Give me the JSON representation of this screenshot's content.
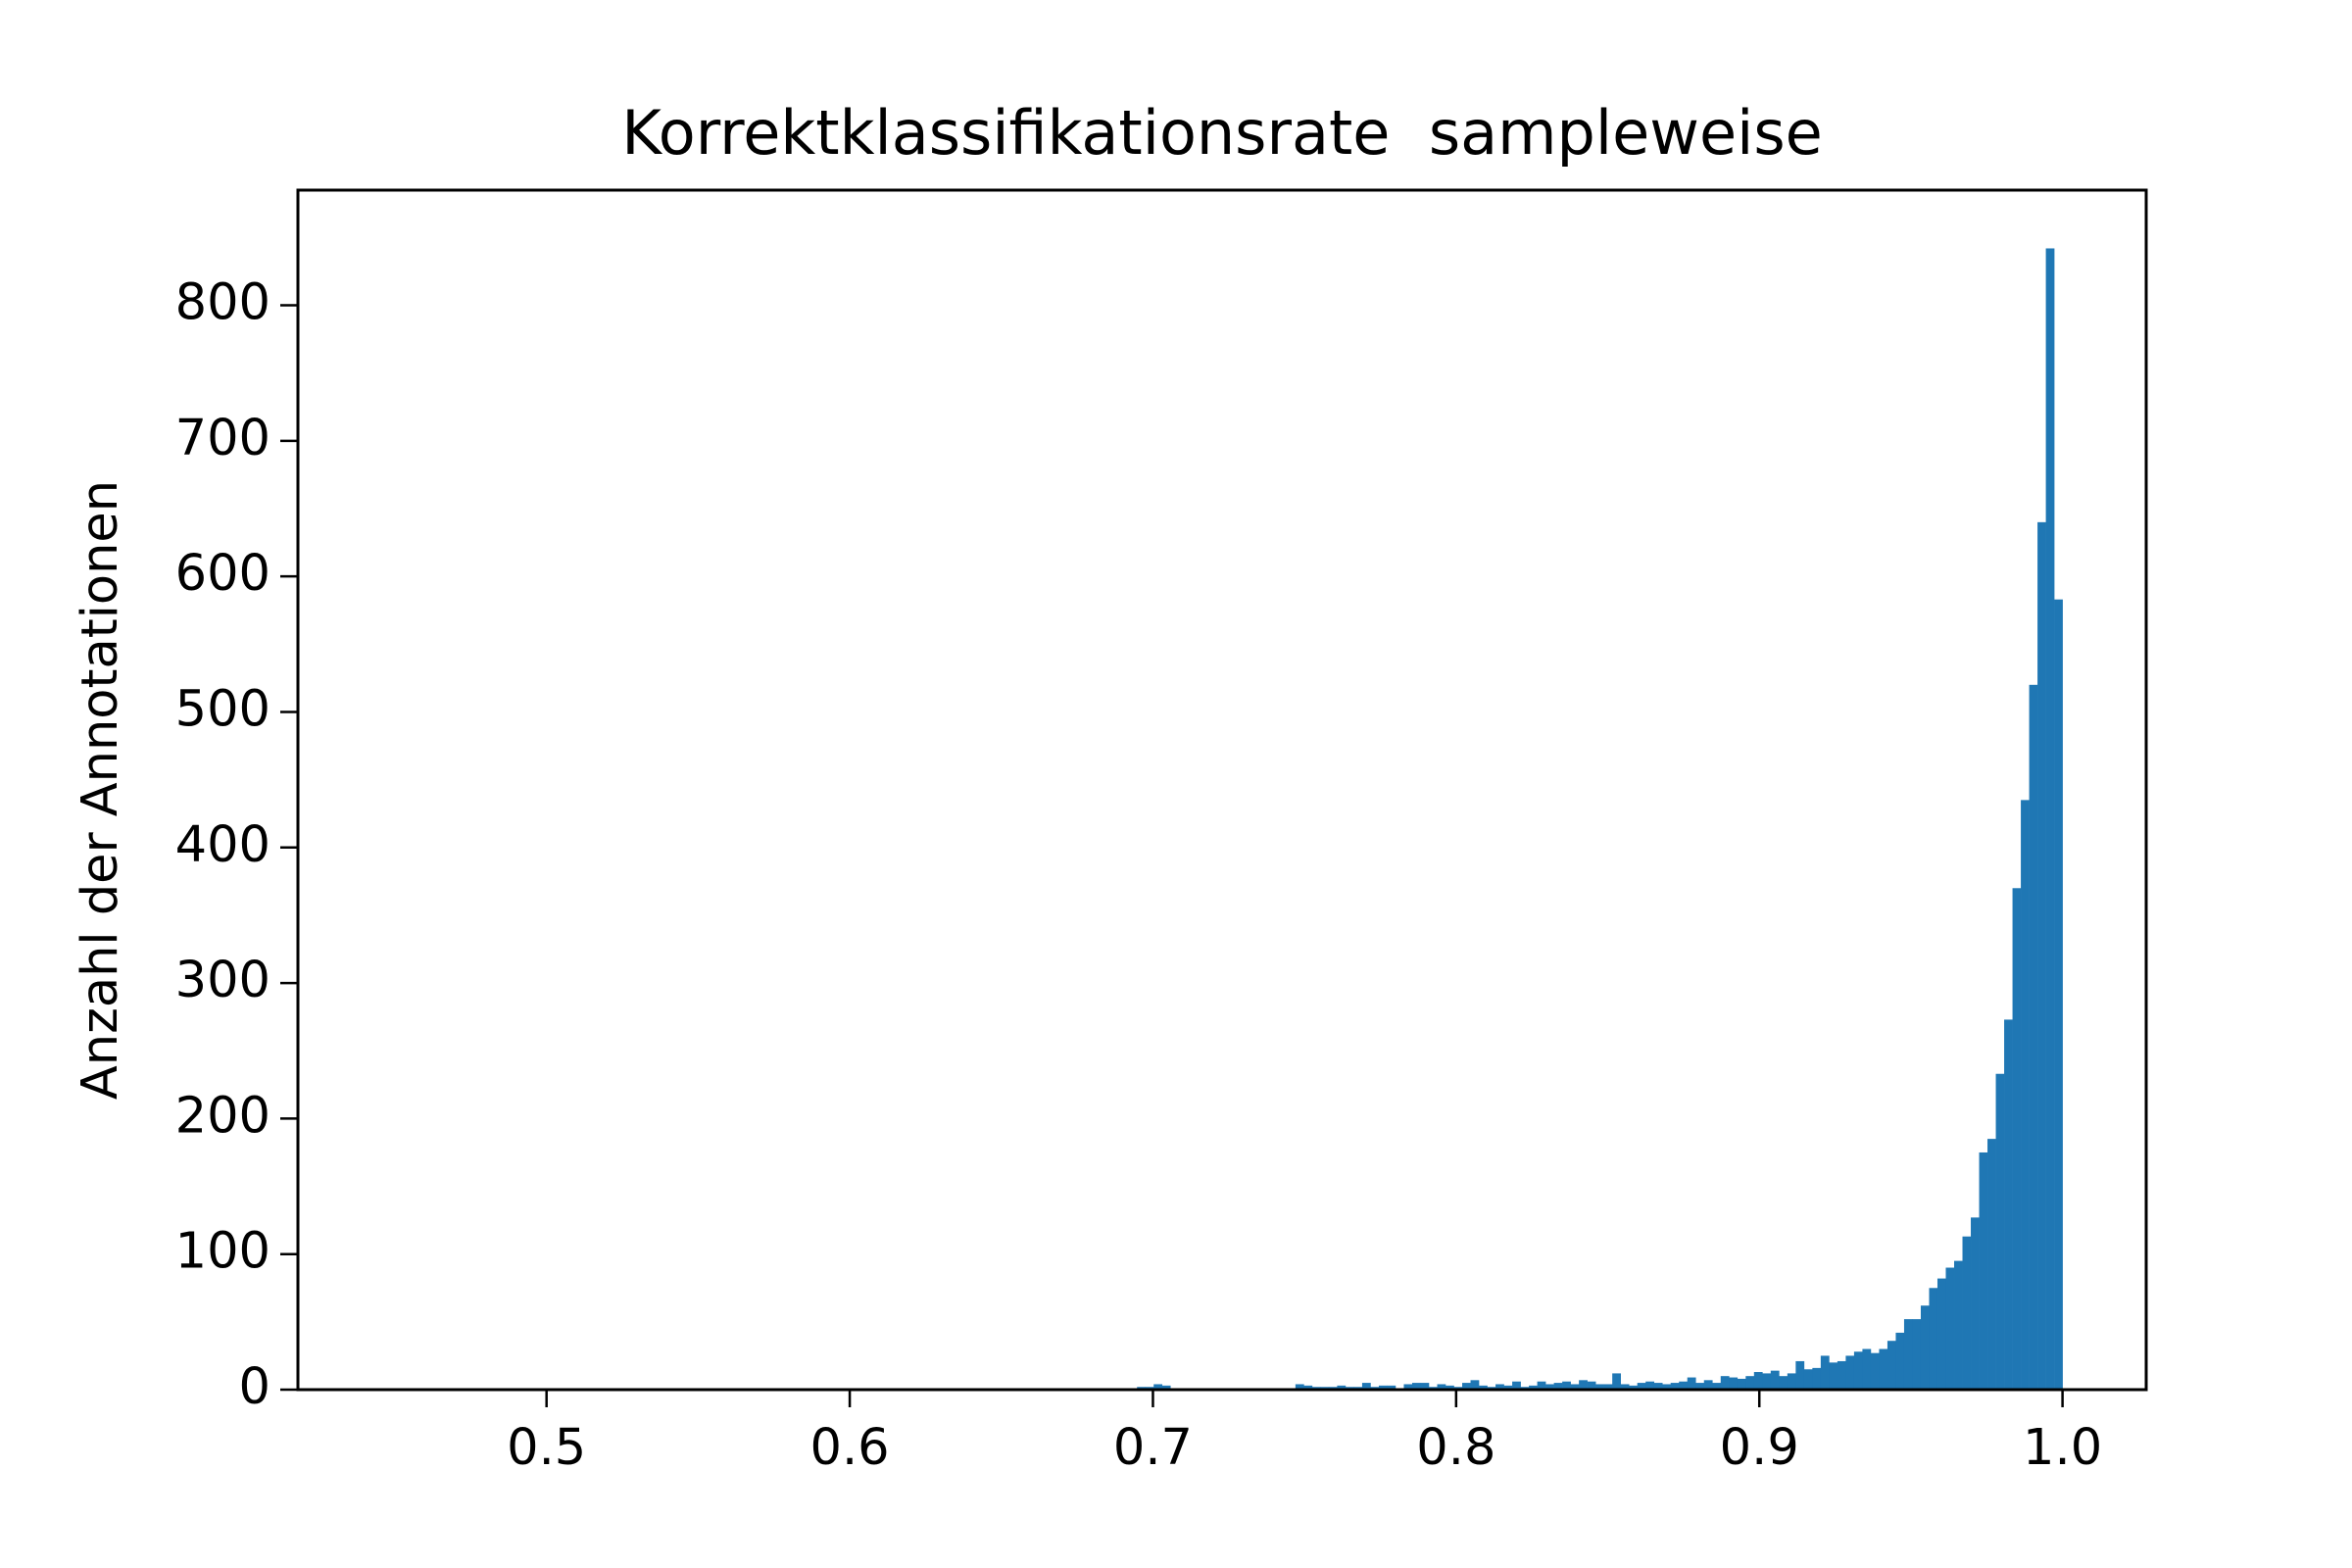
{
  "chart_data": {
    "type": "histogram",
    "title": "Korrektklassifikationsrate  sampleweise",
    "ylabel": "Anzahl der Annotationen",
    "color": "#1f77b4",
    "bins": [
      0.45,
      0.45275,
      0.4555,
      0.45825,
      0.461,
      0.46375,
      0.4665,
      0.46925,
      0.472,
      0.47475,
      0.4775,
      0.48025,
      0.483,
      0.48575,
      0.4885,
      0.49125,
      0.494,
      0.49675,
      0.4995,
      0.50225,
      0.505,
      0.50775,
      0.5105,
      0.51325,
      0.516,
      0.51875,
      0.5215,
      0.52425,
      0.527,
      0.52975,
      0.5325,
      0.53525,
      0.538,
      0.54075,
      0.5435,
      0.54625,
      0.549,
      0.55175,
      0.5545,
      0.55725,
      0.56,
      0.56275,
      0.5655,
      0.56825,
      0.571,
      0.57375,
      0.5765,
      0.57925,
      0.582,
      0.58475,
      0.5875,
      0.59025,
      0.593,
      0.59575,
      0.5985,
      0.60125,
      0.604,
      0.60675,
      0.6095,
      0.61225,
      0.615,
      0.61775,
      0.6205,
      0.62325,
      0.626,
      0.62875,
      0.6315,
      0.63425,
      0.637,
      0.63975,
      0.6425,
      0.64525,
      0.648,
      0.65075,
      0.6535,
      0.65625,
      0.659,
      0.66175,
      0.6645,
      0.66725,
      0.67,
      0.67275,
      0.6755,
      0.67825,
      0.681,
      0.68375,
      0.6865,
      0.68925,
      0.692,
      0.69475,
      0.6975,
      0.70025,
      0.703,
      0.70575,
      0.7085,
      0.71125,
      0.714,
      0.71675,
      0.7195,
      0.72225,
      0.725,
      0.72775,
      0.7305,
      0.73325,
      0.736,
      0.73875,
      0.7415,
      0.74425,
      0.747,
      0.74975,
      0.7525,
      0.75525,
      0.758,
      0.76075,
      0.7635,
      0.76625,
      0.769,
      0.77175,
      0.7745,
      0.77725,
      0.78,
      0.78275,
      0.7855,
      0.78825,
      0.791,
      0.79375,
      0.7965,
      0.79925,
      0.802,
      0.80475,
      0.8075,
      0.81025,
      0.813,
      0.81575,
      0.8185,
      0.82125,
      0.824,
      0.82675,
      0.8295,
      0.83225,
      0.835,
      0.83775,
      0.8405,
      0.84325,
      0.846,
      0.84875,
      0.8515,
      0.85425,
      0.857,
      0.85975,
      0.8625,
      0.86525,
      0.868,
      0.87075,
      0.8735,
      0.87625,
      0.879,
      0.88175,
      0.8845,
      0.88725,
      0.89,
      0.89275,
      0.8955,
      0.89825,
      0.901,
      0.90375,
      0.9065,
      0.90925,
      0.912,
      0.91475,
      0.9175,
      0.92025,
      0.923,
      0.92575,
      0.9285,
      0.93125,
      0.934,
      0.93675,
      0.9395,
      0.94225,
      0.945,
      0.94775,
      0.9505,
      0.95325,
      0.956,
      0.95875,
      0.9615,
      0.96425,
      0.967,
      0.96975,
      0.9725,
      0.97525,
      0.978,
      0.98075,
      0.9835,
      0.98625,
      0.989,
      0.99175,
      0.9945,
      0.99725,
      1.0
    ],
    "values": [
      0,
      0,
      0,
      0,
      0,
      0,
      0,
      0,
      0,
      0,
      0,
      0,
      0,
      0,
      0,
      0,
      0,
      0,
      0,
      0,
      0,
      0,
      0,
      0,
      0,
      0,
      0,
      0,
      0,
      0,
      0,
      0,
      0,
      0,
      0,
      0,
      0,
      0,
      0,
      0,
      0,
      0,
      0,
      0,
      0,
      0,
      0,
      0,
      0,
      0,
      0,
      0,
      0,
      0,
      0,
      0,
      0,
      0,
      0,
      0,
      1,
      0,
      0,
      0,
      0,
      0,
      0,
      0,
      0,
      0,
      0,
      0,
      0,
      1,
      0,
      0,
      0,
      0,
      1,
      0,
      0,
      1,
      0,
      0,
      1,
      0,
      1,
      0,
      1,
      2,
      2,
      4,
      3,
      0,
      0,
      0,
      0,
      0,
      0,
      0,
      0,
      0,
      0,
      0,
      0,
      0,
      0,
      0,
      4,
      3,
      2,
      2,
      2,
      3,
      2,
      2,
      5,
      2,
      3,
      3,
      1,
      4,
      5,
      5,
      2,
      4,
      3,
      2,
      5,
      7,
      3,
      2,
      4,
      3,
      6,
      2,
      3,
      6,
      4,
      5,
      6,
      4,
      7,
      6,
      4,
      4,
      12,
      4,
      3,
      5,
      6,
      5,
      4,
      5,
      6,
      9,
      5,
      7,
      5,
      10,
      9,
      8,
      10,
      13,
      12,
      14,
      10,
      12,
      21,
      15,
      16,
      25,
      20,
      21,
      25,
      28,
      30,
      27,
      30,
      36,
      42,
      52,
      52,
      62,
      75,
      82,
      90,
      95,
      113,
      127,
      175,
      185,
      233,
      273,
      370,
      435,
      520,
      640,
      842,
      583
    ],
    "xlim": [
      0.418,
      1.0276
    ],
    "ylim": [
      0,
      885
    ],
    "xticks": [
      {
        "value": 0.5,
        "label": "0.5"
      },
      {
        "value": 0.6,
        "label": "0.6"
      },
      {
        "value": 0.7,
        "label": "0.7"
      },
      {
        "value": 0.8,
        "label": "0.8"
      },
      {
        "value": 0.9,
        "label": "0.9"
      },
      {
        "value": 1.0,
        "label": "1.0"
      }
    ],
    "yticks": [
      0,
      100,
      200,
      300,
      400,
      500,
      600,
      700,
      800
    ]
  }
}
